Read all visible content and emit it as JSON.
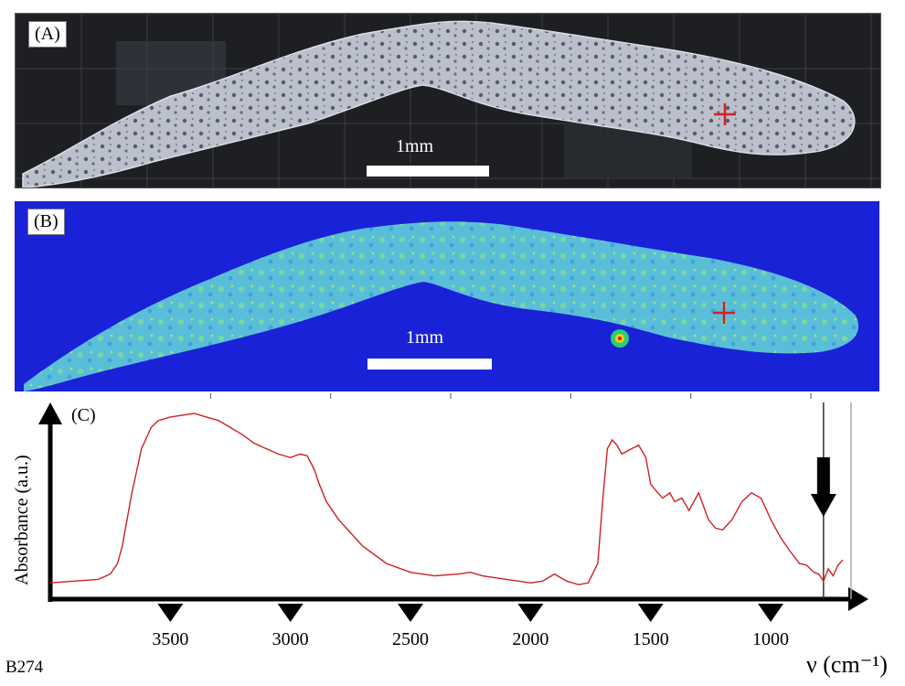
{
  "panel_a": {
    "label": "(A)",
    "scale_label": "1mm"
  },
  "panel_b": {
    "label": "(B)",
    "scale_label": "1mm"
  },
  "panel_c": {
    "label": "(C)",
    "ylabel": "Absorbance (a.u.)",
    "xlabel": "ν (cm⁻¹)",
    "x_ticks": [
      "3500",
      "3000",
      "2500",
      "2000",
      "1500",
      "1000"
    ]
  },
  "figure_id": "B274",
  "chart_data": {
    "type": "line",
    "title": "",
    "xlabel": "ν (cm⁻¹)",
    "ylabel": "Absorbance (a.u.)",
    "xlim": [
      4000,
      650
    ],
    "x_reversed": true,
    "ylim": [
      0,
      1
    ],
    "grid": false,
    "marker_wavenumber": 780,
    "series": [
      {
        "color": "#cc2222",
        "x": [
          4000,
          3900,
          3800,
          3750,
          3720,
          3700,
          3660,
          3620,
          3580,
          3550,
          3500,
          3450,
          3400,
          3350,
          3300,
          3250,
          3200,
          3150,
          3100,
          3050,
          3000,
          2960,
          2930,
          2900,
          2880,
          2850,
          2800,
          2700,
          2600,
          2500,
          2400,
          2300,
          2250,
          2200,
          2100,
          2000,
          1950,
          1900,
          1850,
          1800,
          1760,
          1720,
          1700,
          1680,
          1660,
          1640,
          1620,
          1580,
          1550,
          1520,
          1500,
          1470,
          1450,
          1420,
          1400,
          1370,
          1340,
          1300,
          1260,
          1230,
          1200,
          1160,
          1120,
          1080,
          1040,
          1000,
          960,
          920,
          880,
          850,
          820,
          800,
          780,
          760,
          740,
          720,
          700
        ],
        "y": [
          0.04,
          0.05,
          0.06,
          0.09,
          0.15,
          0.25,
          0.55,
          0.8,
          0.92,
          0.96,
          0.98,
          0.99,
          1.0,
          0.98,
          0.96,
          0.92,
          0.88,
          0.83,
          0.8,
          0.77,
          0.75,
          0.77,
          0.76,
          0.68,
          0.6,
          0.5,
          0.4,
          0.25,
          0.15,
          0.1,
          0.08,
          0.09,
          0.1,
          0.08,
          0.06,
          0.04,
          0.05,
          0.09,
          0.05,
          0.03,
          0.04,
          0.15,
          0.5,
          0.8,
          0.85,
          0.82,
          0.77,
          0.8,
          0.82,
          0.75,
          0.6,
          0.55,
          0.52,
          0.55,
          0.5,
          0.52,
          0.45,
          0.55,
          0.4,
          0.35,
          0.34,
          0.4,
          0.5,
          0.55,
          0.52,
          0.4,
          0.3,
          0.22,
          0.15,
          0.14,
          0.1,
          0.09,
          0.05,
          0.12,
          0.08,
          0.14,
          0.17
        ]
      }
    ]
  }
}
